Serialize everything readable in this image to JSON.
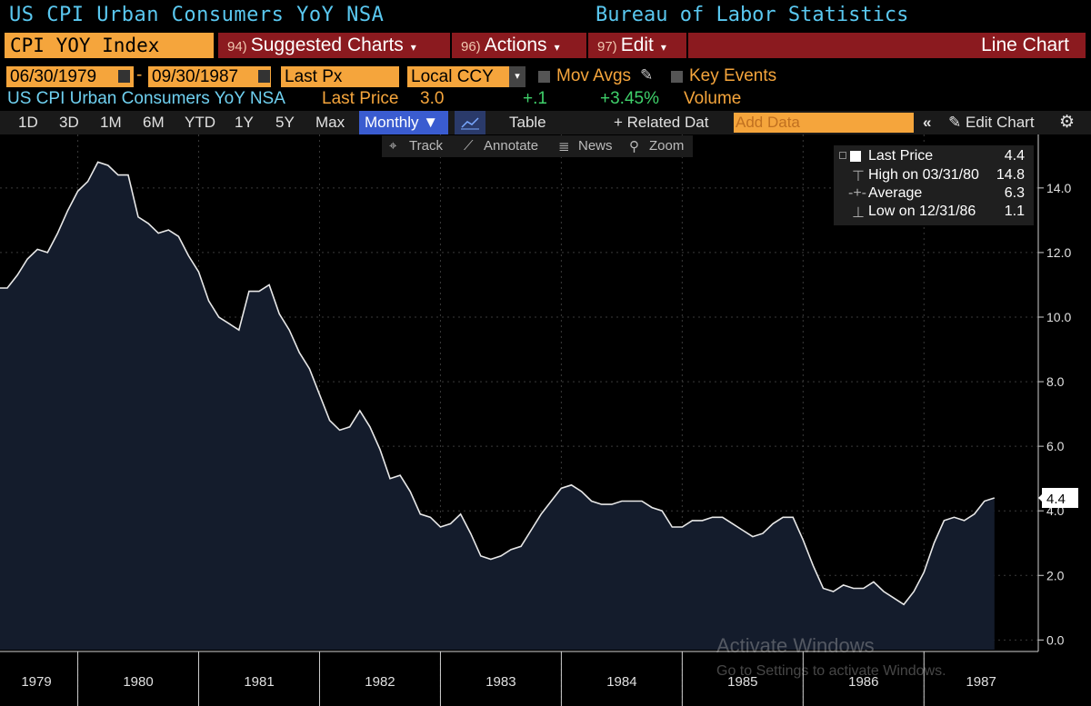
{
  "header": {
    "title": "US CPI Urban Consumers YoY NSA",
    "source": "Bureau of Labor Statistics"
  },
  "menu": {
    "ticker": "CPI YOY Index",
    "suggested_num": "94)",
    "suggested_label": "Suggested Charts",
    "actions_num": "96)",
    "actions_label": "Actions",
    "edit_num": "97)",
    "edit_label": "Edit",
    "chart_type": "Line Chart"
  },
  "controls": {
    "start_date": "06/30/1979",
    "date_sep": "-",
    "end_date": "09/30/1987",
    "field": "Last Px",
    "currency": "Local CCY",
    "mov_avgs": "Mov Avgs",
    "key_events": "Key Events"
  },
  "security_line": {
    "name": "US CPI Urban Consumers YoY NSA",
    "last_price_label": "Last Price",
    "last_price": "3.0",
    "change": "+.1",
    "pct_change": "+3.45%",
    "volume_label": "Volume"
  },
  "toolbar": {
    "periods": [
      "1D",
      "3D",
      "1M",
      "6M",
      "YTD",
      "1Y",
      "5Y",
      "Max"
    ],
    "frequency": "Monthly",
    "table": "Table",
    "related": "+ Related Dat",
    "add_data_placeholder": "Add Data",
    "collapse": "«",
    "edit_chart": "Edit Chart",
    "settings_icon": "gear-icon"
  },
  "sub_toolbar": {
    "track": "Track",
    "annotate": "Annotate",
    "news": "News",
    "zoom": "Zoom"
  },
  "legend": {
    "last_price_label": "Last Price",
    "last_price_value": "4.4",
    "high_label": "High on 03/31/80",
    "high_value": "14.8",
    "average_label": "Average",
    "average_value": "6.3",
    "low_label": "Low on 12/31/86",
    "low_value": "1.1"
  },
  "watermark": {
    "line1": "Activate Windows",
    "line2": "Go to Settings to activate Windows."
  },
  "colors": {
    "accent_orange": "#f5a53c",
    "menu_red": "#8b1a1f",
    "title_blue": "#5ac8f0",
    "area_fill": "#141c2c",
    "line": "#e8e8e8"
  },
  "chart_data": {
    "type": "area",
    "title": "US CPI Urban Consumers YoY NSA",
    "xlabel": "",
    "ylabel": "",
    "x_tick_labels": [
      "1979",
      "1980",
      "1981",
      "1982",
      "1983",
      "1984",
      "1985",
      "1986",
      "1987"
    ],
    "y_ticks": [
      0.0,
      2.0,
      4.0,
      6.0,
      8.0,
      10.0,
      12.0,
      14.0
    ],
    "y_tick_labels": [
      "0.0",
      "2.0",
      "4.0",
      "6.0",
      "8.0",
      "10.0",
      "12.0",
      "14.0"
    ],
    "ylim": [
      -0.3,
      15.6
    ],
    "x_start": "1979-06",
    "last_value_label": "4.4",
    "grid": true,
    "series": [
      {
        "name": "CPI YOY Index",
        "frequency": "monthly",
        "values": [
          10.9,
          11.3,
          11.8,
          12.1,
          12.0,
          12.6,
          13.3,
          13.9,
          14.2,
          14.8,
          14.7,
          14.4,
          14.4,
          13.1,
          12.9,
          12.6,
          12.7,
          12.5,
          11.9,
          11.4,
          10.5,
          10.0,
          9.8,
          9.6,
          10.8,
          10.8,
          11.0,
          10.1,
          9.6,
          8.9,
          8.4,
          7.6,
          6.8,
          6.5,
          6.6,
          7.1,
          6.6,
          5.9,
          5.0,
          5.1,
          4.6,
          3.9,
          3.8,
          3.5,
          3.6,
          3.9,
          3.3,
          2.6,
          2.5,
          2.6,
          2.8,
          2.9,
          3.4,
          3.9,
          4.3,
          4.7,
          4.8,
          4.6,
          4.3,
          4.2,
          4.2,
          4.3,
          4.3,
          4.3,
          4.1,
          4.0,
          3.5,
          3.5,
          3.7,
          3.7,
          3.8,
          3.8,
          3.6,
          3.4,
          3.2,
          3.3,
          3.6,
          3.8,
          3.8,
          3.1,
          2.3,
          1.6,
          1.5,
          1.7,
          1.6,
          1.6,
          1.8,
          1.5,
          1.3,
          1.1,
          1.5,
          2.1,
          3.0,
          3.7,
          3.8,
          3.7,
          3.9,
          4.3,
          4.4
        ]
      }
    ]
  }
}
